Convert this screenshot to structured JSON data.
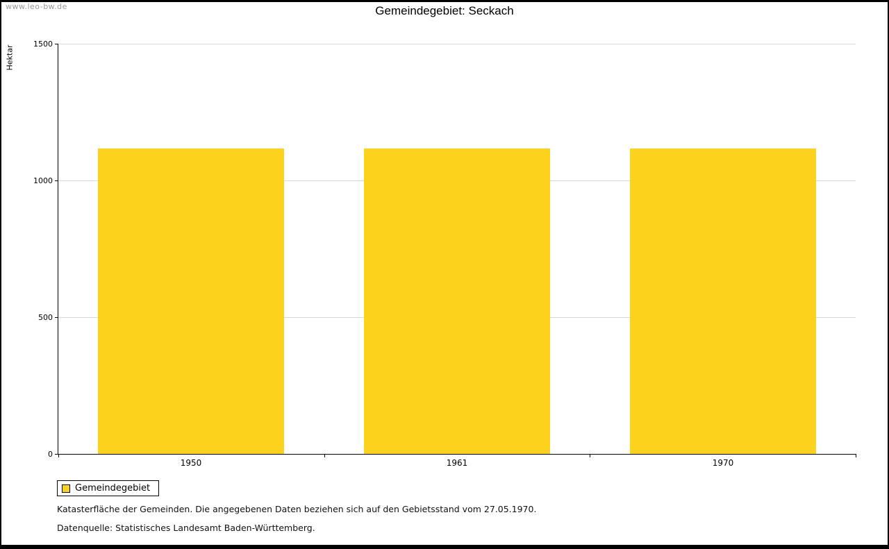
{
  "watermark": "www.leo-bw.de",
  "title": "Gemeindegebiet: Seckach",
  "chart_data": {
    "type": "bar",
    "title": "Gemeindegebiet: Seckach",
    "categories": [
      "1950",
      "1961",
      "1970"
    ],
    "series": [
      {
        "name": "Gemeindegebiet",
        "values": [
          1117,
          1117,
          1117
        ],
        "color": "#fcd21c"
      }
    ],
    "xlabel": "",
    "ylabel": "Hektar",
    "ylim": [
      0,
      1500
    ],
    "yticks": [
      0,
      500,
      1000,
      1500
    ],
    "grid": true,
    "legend_position": "bottom-left"
  },
  "legend": {
    "label": "Gemeindegebiet",
    "color": "#fcd21c"
  },
  "footnotes": {
    "line1": "Katasterfläche der Gemeinden. Die angegebenen Daten beziehen sich auf den Gebietsstand vom 27.05.1970.",
    "line2": "Datenquelle: Statistisches Landesamt Baden-Württemberg."
  }
}
